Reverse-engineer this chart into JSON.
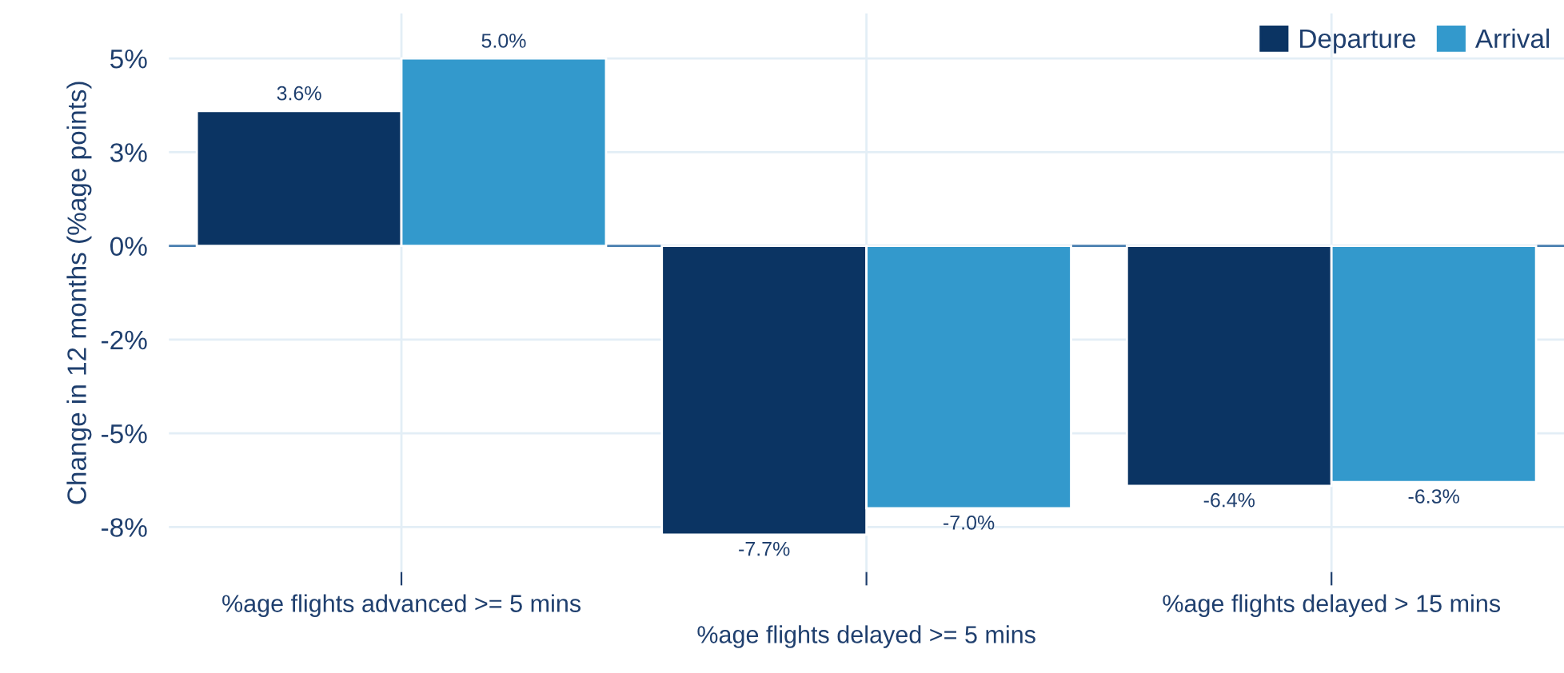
{
  "chart_data": {
    "type": "bar",
    "ylabel": "Change in 12 months (%age points)",
    "categories": [
      "%age flights advanced >= 5 mins",
      "%age flights delayed >= 5 mins",
      "%age flights delayed > 15 mins"
    ],
    "series": [
      {
        "name": "Departure",
        "color": "#0b3463",
        "values": [
          3.6,
          -7.7,
          -6.4
        ],
        "value_labels": [
          "3.6%",
          "-7.7%",
          "-6.4%"
        ]
      },
      {
        "name": "Arrival",
        "color": "#3399cc",
        "values": [
          5.0,
          -7.0,
          -6.3
        ],
        "value_labels": [
          "5.0%",
          "-7.0%",
          "-6.3%"
        ]
      }
    ],
    "ylim": [
      -8.7,
      6.2
    ],
    "yticks": [
      {
        "value": 5,
        "label": "5%"
      },
      {
        "value": 2.5,
        "label": "3%"
      },
      {
        "value": 0,
        "label": "0%"
      },
      {
        "value": -2.5,
        "label": "-2%"
      },
      {
        "value": -5,
        "label": "-5%"
      },
      {
        "value": -7.5,
        "label": "-8%"
      }
    ],
    "ref_lines": [
      {
        "axis": "y",
        "value": 0,
        "color": "#4a7fb0"
      }
    ],
    "grid": true,
    "legend": "top right"
  }
}
